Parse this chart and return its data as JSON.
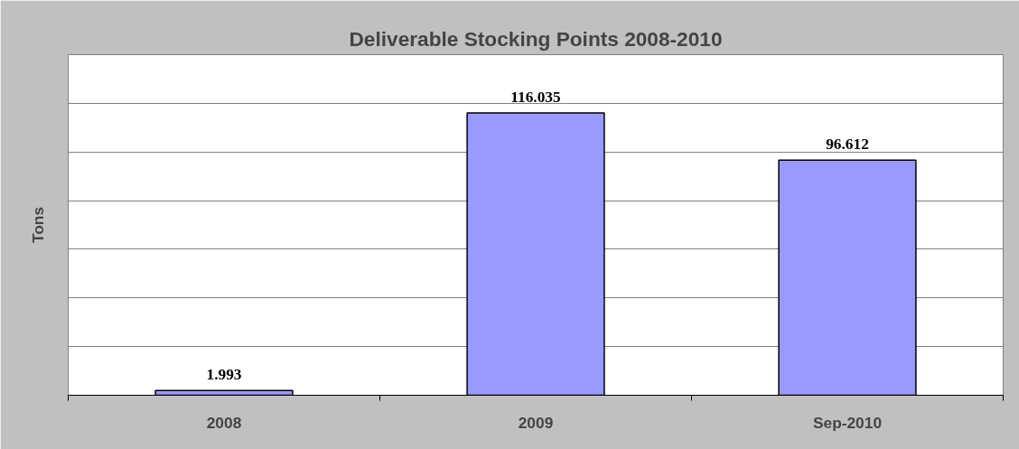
{
  "chart_data": {
    "type": "bar",
    "title": "Deliverable Stocking Points 2008-2010",
    "ylabel": "Tons",
    "categories": [
      "2008",
      "2009",
      "Sep-2010"
    ],
    "values": [
      1.993,
      116.035,
      96.612
    ],
    "color": "#9999ff",
    "ylim": [
      0,
      140
    ],
    "yticks": [
      {
        "value": 0,
        "label": null
      },
      {
        "value": 20,
        "label": null
      },
      {
        "value": 40,
        "label": null
      },
      {
        "value": 60,
        "label": null
      },
      {
        "value": 80,
        "label": null
      },
      {
        "value": 100,
        "label": null
      },
      {
        "value": 120,
        "label": null
      },
      {
        "value": 140,
        "label": null
      }
    ],
    "tick_labels": "x",
    "grid": "y",
    "data_labels": true
  }
}
